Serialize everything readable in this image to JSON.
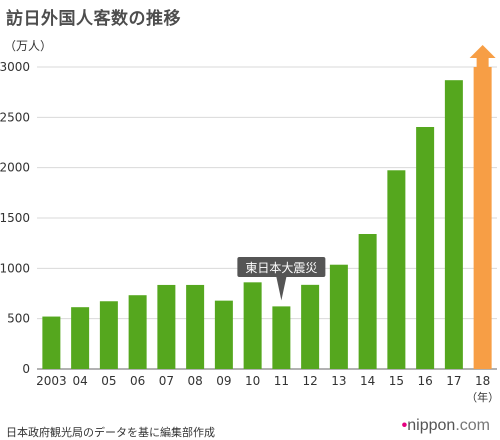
{
  "title": "訪日外国人客数の推移",
  "source": "日本政府観光局のデータを基に編集部作成",
  "logo": {
    "dot": "•",
    "main": "nippon",
    "suffix": ".com"
  },
  "colors": {
    "bar": "#55a71e",
    "highlight": "#f79e45",
    "grid": "#d9d9d9",
    "axis": "#666666",
    "annotation_bg": "#555555"
  },
  "chart_data": {
    "type": "bar",
    "title": "訪日外国人客数の推移",
    "ylabel": "（万人）",
    "xlabel_unit": "（年）",
    "ylim": [
      0,
      3000
    ],
    "yticks": [
      0,
      500,
      1000,
      1500,
      2000,
      2500,
      3000
    ],
    "grid": true,
    "categories": [
      "2003",
      "04",
      "05",
      "06",
      "07",
      "08",
      "09",
      "10",
      "11",
      "12",
      "13",
      "14",
      "15",
      "16",
      "17",
      "18"
    ],
    "values": [
      521,
      614,
      673,
      733,
      835,
      835,
      679,
      861,
      622,
      836,
      1036,
      1341,
      1974,
      2404,
      2869,
      3000
    ],
    "highlight_index": 15,
    "highlight_arrow": true,
    "annotation": {
      "text": "東日本大震災",
      "category": "11"
    }
  }
}
